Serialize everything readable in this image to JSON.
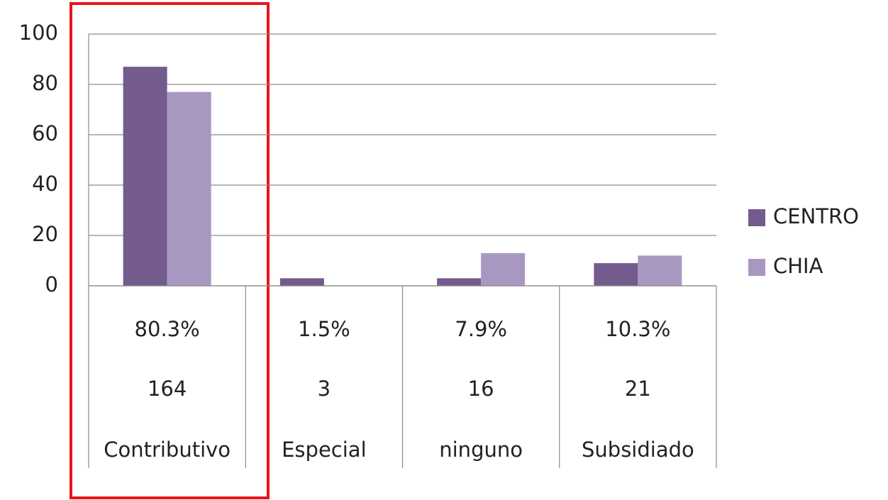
{
  "chart_data": {
    "type": "bar",
    "categories": [
      "Contributivo",
      "Especial",
      "ninguno",
      "Subsidiado"
    ],
    "category_percentages": [
      {
        "value": 80.3,
        "label": "80.3%"
      },
      {
        "value": 1.5,
        "label": "1.5%"
      },
      {
        "value": 7.9,
        "label": "7.9%"
      },
      {
        "value": 10.3,
        "label": "10.3%"
      }
    ],
    "category_counts": [
      164,
      3,
      16,
      21
    ],
    "series": [
      {
        "name": "CENTRO",
        "color": "#735b8e",
        "values": [
          87,
          3,
          3,
          9
        ]
      },
      {
        "name": "CHIA",
        "color": "#a898c1",
        "values": [
          77,
          0,
          13,
          12
        ]
      }
    ],
    "ylim": [
      0,
      100
    ],
    "yticks": [
      0,
      20,
      40,
      60,
      80,
      100
    ],
    "grid": true,
    "legend": "right"
  }
}
